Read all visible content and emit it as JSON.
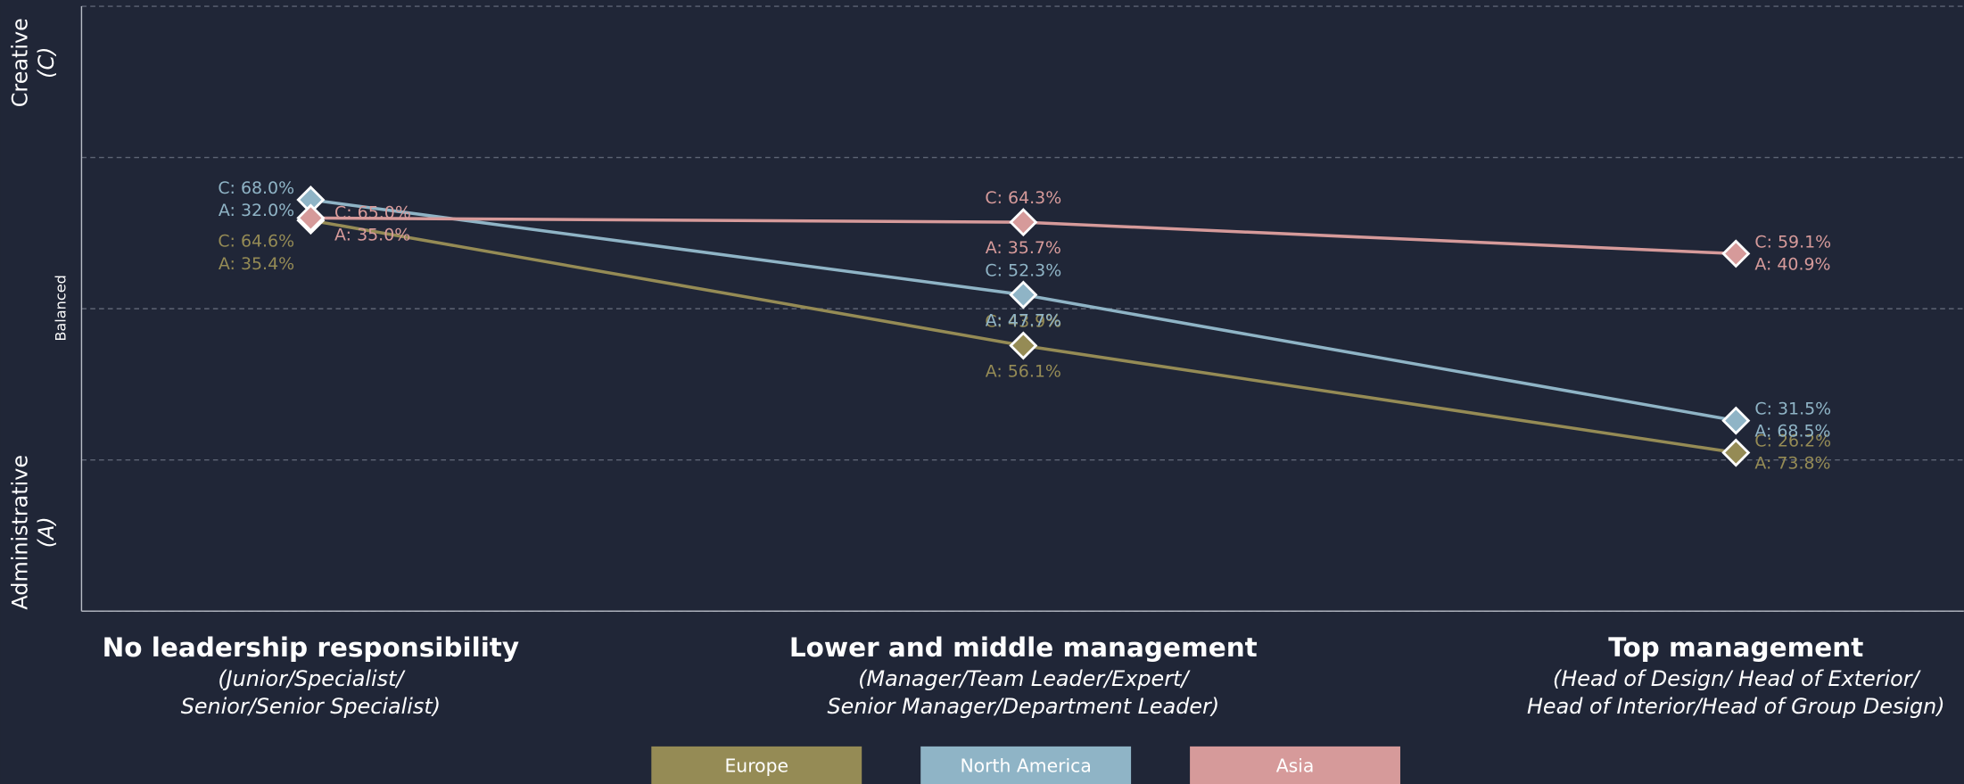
{
  "chart_data": {
    "type": "line",
    "y_labels": {
      "top": [
        "Creative",
        "(C)"
      ],
      "middle": "Balanced",
      "bottom": [
        "Administrative",
        "(A)"
      ]
    },
    "categories": [
      "No leadership responsibility",
      "Lower and middle management",
      "Top management"
    ],
    "category_notes": [
      [
        "(Junior/Specialist/",
        "Senior/Senior Specialist)"
      ],
      [
        "(Manager/Team Leader/Expert/",
        "Senior Manager/Department Leader)"
      ],
      [
        "(Head of Design/ Head of Exterior/",
        "Head of Interior/Head of Group Design)"
      ]
    ],
    "ylim": [
      0,
      100
    ],
    "yticks": [
      0,
      25,
      50,
      75,
      100
    ],
    "grid": true,
    "series": [
      {
        "name": "Europe",
        "color": "#958b55",
        "values": [
          64.6,
          43.9,
          26.2
        ],
        "value_labels": [
          "C: 64.6%",
          "C: 43.9%",
          "C: 26.2%"
        ],
        "a_values": [
          35.4,
          56.1,
          73.8
        ],
        "a_value_labels": [
          "A: 35.4%",
          "A: 56.1%",
          "A: 73.8%"
        ]
      },
      {
        "name": "North America",
        "color": "#8fb4c6",
        "values": [
          68.0,
          52.3,
          31.5
        ],
        "value_labels": [
          "C: 68.0%",
          "C: 52.3%",
          "C: 31.5%"
        ],
        "a_values": [
          32.0,
          47.7,
          68.5
        ],
        "a_value_labels": [
          "A: 32.0%",
          "A: 47.7%",
          "A: 68.5%"
        ]
      },
      {
        "name": "Asia",
        "color": "#d69a9a",
        "values": [
          65.0,
          64.3,
          59.1
        ],
        "value_labels": [
          "C: 65.0%",
          "C: 64.3%",
          "C: 59.1%"
        ],
        "a_values": [
          35.0,
          35.7,
          40.9
        ],
        "a_value_labels": [
          "A: 35.0%",
          "A: 35.7%",
          "A: 40.9%"
        ]
      }
    ]
  }
}
